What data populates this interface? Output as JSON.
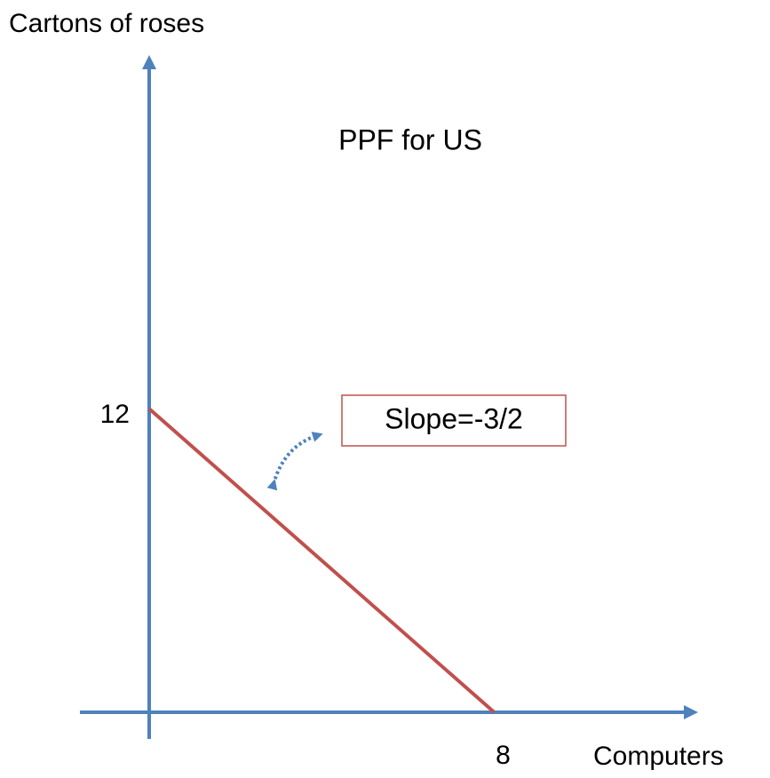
{
  "chart_data": {
    "type": "line",
    "title": "PPF for US",
    "y_label": "Cartons of roses",
    "x_label": "Computers",
    "annotation": "Slope=-3/2",
    "x": [
      0,
      8
    ],
    "values": [
      12,
      0
    ],
    "color": "#c0504d",
    "xlim": [
      0,
      12.5
    ],
    "ylim": [
      0,
      25.7
    ],
    "xticks": [
      8
    ],
    "yticks": [
      12
    ],
    "grid": false
  }
}
